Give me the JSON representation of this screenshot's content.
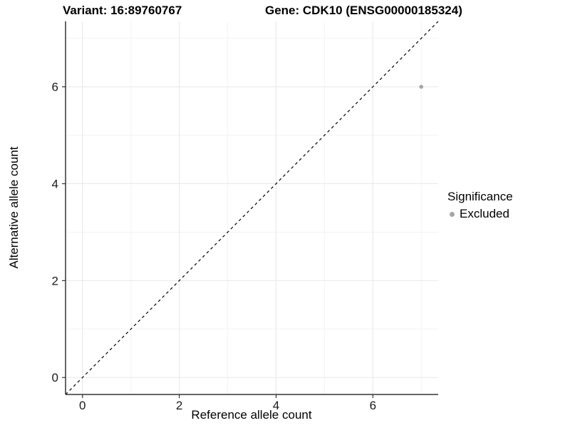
{
  "header": {
    "variant_title": "Variant: 16:89760767",
    "gene_title": "Gene: CDK10 (ENSG00000185324)"
  },
  "legend": {
    "title": "Significance",
    "items": [
      {
        "label": "Excluded",
        "color": "#a6a6a6"
      }
    ]
  },
  "chart_data": {
    "type": "scatter",
    "title": "Variant: 16:89760767  Gene: CDK10 (ENSG00000185324)",
    "xlabel": "Reference allele count",
    "ylabel": "Alternative allele count",
    "xlim": [
      -0.35,
      7.35
    ],
    "ylim": [
      -0.35,
      7.35
    ],
    "xticks": [
      0,
      2,
      4,
      6
    ],
    "yticks": [
      0,
      2,
      4,
      6
    ],
    "minor_ticks": [
      1,
      3,
      5,
      7
    ],
    "grid": {
      "major_color": "#e8e8e8",
      "minor_color": "#f3f3f3"
    },
    "axis_color": "#333333",
    "tick_label_color": "#1a1a1a",
    "series": [
      {
        "name": "Excluded",
        "color": "#a6a6a6",
        "points": [
          {
            "x": 7,
            "y": 6
          }
        ]
      }
    ],
    "reference_line": {
      "type": "identity",
      "from": [
        -0.35,
        -0.35
      ],
      "to": [
        7.35,
        7.35
      ],
      "style": "dashed",
      "color": "#000000"
    }
  }
}
